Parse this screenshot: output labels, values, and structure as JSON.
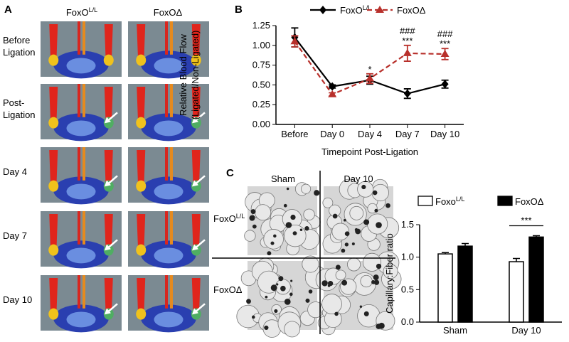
{
  "panel_labels": [
    "A",
    "B",
    "C"
  ],
  "panel_a": {
    "columns": [
      {
        "text": "FoxO",
        "superscript": "L/L"
      },
      {
        "text": "FoxOΔ"
      }
    ],
    "rows": [
      [
        "Before",
        "Ligation"
      ],
      [
        "Post-",
        "Ligation"
      ],
      [
        "Day 4"
      ],
      [
        "Day 7"
      ],
      [
        "Day 10"
      ]
    ]
  },
  "panel_c_images": {
    "columns": [
      "Sham",
      "Day 10"
    ],
    "rows": [
      {
        "text": "FoxO",
        "superscript": "L/L"
      },
      {
        "text": "FoxOΔ"
      }
    ]
  },
  "chart_data": [
    {
      "type": "line",
      "ylabel": [
        "Relative Blood Flow",
        "(Ligated/Non-Ligated)"
      ],
      "xlabel": "Timepoint Post-Ligation",
      "categories": [
        "Before",
        "Day 0",
        "Day 4",
        "Day 7",
        "Day 10"
      ],
      "ylim": [
        0,
        1.25
      ],
      "yticks": [
        {
          "value": 0,
          "label": "0.00"
        },
        {
          "value": 0.25,
          "label": "0.25"
        },
        {
          "value": 0.5,
          "label": "0.50"
        },
        {
          "value": 0.75,
          "label": "0.75"
        },
        {
          "value": 1,
          "label": "1.00"
        },
        {
          "value": 1.25,
          "label": "1.25"
        }
      ],
      "series": [
        {
          "name": "FoxO",
          "name_superscript": "L/L",
          "color": "#000000",
          "dashed": false,
          "marker": "diamond",
          "values": [
            1.1,
            0.48,
            0.56,
            0.39,
            0.51
          ],
          "errors": [
            0.12,
            0.02,
            0.05,
            0.06,
            0.05
          ]
        },
        {
          "name": "FoxOΔ",
          "color": "#b8302b",
          "dashed": true,
          "marker": "triangle",
          "values": [
            1.05,
            0.38,
            0.58,
            0.9,
            0.89
          ],
          "errors": [
            0.07,
            0.02,
            0.06,
            0.1,
            0.07
          ],
          "significance": [
            null,
            null,
            "*",
            "***",
            "***"
          ],
          "significance_vs_control": [
            null,
            null,
            null,
            "###",
            "###"
          ]
        }
      ]
    },
    {
      "type": "bar",
      "ylabel": "Capillary:Fiber ratio",
      "categories": [
        "Sham",
        "Day 10"
      ],
      "ylim": [
        0,
        1.5
      ],
      "yticks": [
        {
          "value": 0,
          "label": "0.0"
        },
        {
          "value": 0.5,
          "label": "0.5"
        },
        {
          "value": 1,
          "label": "1.0"
        },
        {
          "value": 1.5,
          "label": "1.5"
        }
      ],
      "series": [
        {
          "name": "Foxo",
          "name_superscript": "L/L",
          "color": "#ffffff",
          "values": [
            1.05,
            0.93
          ],
          "errors": [
            0.02,
            0.05
          ]
        },
        {
          "name": "FoxOΔ",
          "color": "#000000",
          "values": [
            1.17,
            1.31
          ],
          "errors": [
            0.04,
            0.02
          ]
        }
      ],
      "significance": [
        null,
        "***"
      ]
    }
  ]
}
